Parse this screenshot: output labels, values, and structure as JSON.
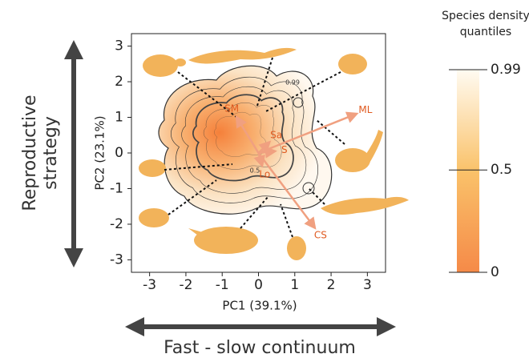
{
  "chart_data": {
    "type": "biplot",
    "xlabel": "PC1 (39.1%)",
    "ylabel": "PC2 (23.1%)",
    "x_concept": "Fast - slow continuum",
    "y_concept": [
      "Reproductive",
      "strategy"
    ],
    "xlim": [
      -3.5,
      3.5
    ],
    "ylim": [
      -3.35,
      3.35
    ],
    "xticks": [
      -3,
      -2,
      -1,
      0,
      1,
      2,
      3
    ],
    "yticks": [
      -3,
      -2,
      -1,
      0,
      1,
      2,
      3
    ],
    "loadings_color": "#f0a080",
    "loading_label_color": "#e05a20",
    "loadings": [
      {
        "name": "ML",
        "x": 2.7,
        "y": 1.1
      },
      {
        "name": "CS",
        "x": 1.55,
        "y": -2.1
      },
      {
        "name": "SM",
        "x": -0.6,
        "y": 1.0
      },
      {
        "name": "Sa",
        "x": 0.3,
        "y": 0.3
      },
      {
        "name": "S",
        "x": 0.45,
        "y": 0.05
      },
      {
        "name": "Lo",
        "x": 0.1,
        "y": -0.35
      }
    ],
    "contour_labels": [
      "0.99",
      "0.5"
    ],
    "colorbar": {
      "title": "Species density quantiles",
      "lim": [
        0,
        0.99
      ],
      "ticks": [
        0,
        0.5,
        0.99
      ]
    }
  }
}
